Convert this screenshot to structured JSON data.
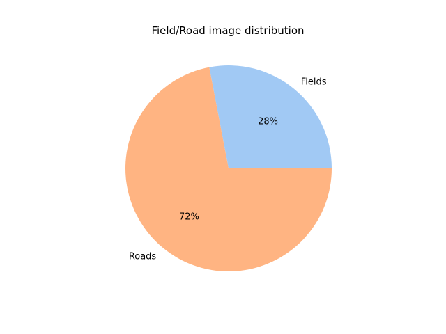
{
  "chart_data": {
    "type": "pie",
    "title": "Field/Road image distribution",
    "categories": [
      "Fields",
      "Roads"
    ],
    "values": [
      28,
      72
    ],
    "value_labels": [
      "28%",
      "72%"
    ],
    "colors": [
      "#a1c9f4",
      "#ffb482"
    ],
    "start_angle_deg": 0,
    "direction": "counterclockwise",
    "legend": "none"
  }
}
